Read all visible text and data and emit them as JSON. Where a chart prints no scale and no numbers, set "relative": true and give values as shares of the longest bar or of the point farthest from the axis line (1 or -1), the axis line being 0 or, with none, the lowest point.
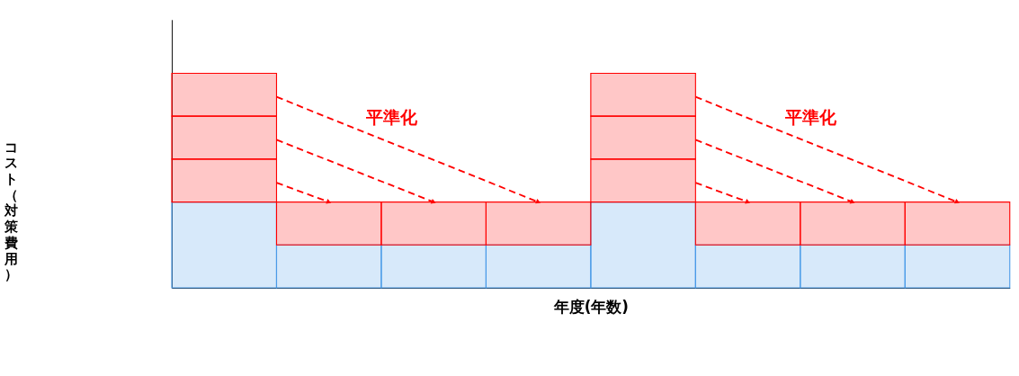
{
  "chart_data": {
    "type": "bar",
    "stacked": true,
    "relative": true,
    "xlabel": "年度(年数)",
    "ylabel": "コスト（対策費用）",
    "categories": [
      null,
      null,
      null,
      null,
      null,
      null,
      null,
      null
    ],
    "series": [
      {
        "color": "#4a9be8",
        "values": [
          0.4,
          0.2,
          0.2,
          0.2,
          0.4,
          0.2,
          0.2,
          0.2
        ]
      },
      {
        "color": "#ff0000",
        "values": [
          0.2,
          0.2,
          0.2,
          0.2,
          0.2,
          0.2,
          0.2,
          0.2
        ]
      },
      {
        "color": "#ff0000",
        "values": [
          0.2,
          null,
          null,
          null,
          0.2,
          null,
          null,
          null
        ]
      },
      {
        "color": "#ff0000",
        "values": [
          0.2,
          null,
          null,
          null,
          0.2,
          null,
          null,
          null
        ]
      }
    ],
    "annotations": [
      "平準化",
      "平準化"
    ],
    "grid": false
  }
}
